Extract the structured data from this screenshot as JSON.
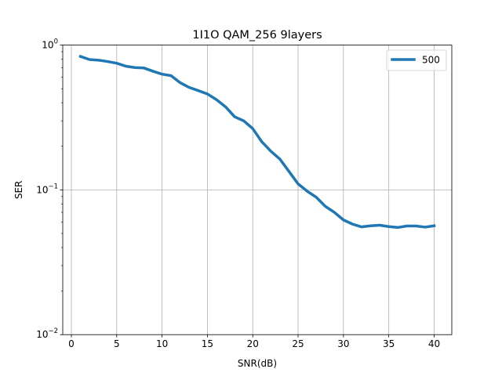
{
  "chart_data": {
    "type": "line",
    "title": "1I1O QAM_256 9layers",
    "xlabel": "SNR(dB)",
    "ylabel": "SER",
    "yscale": "log",
    "xlim": [
      -0.95,
      41.95
    ],
    "ylim": [
      0.01,
      1
    ],
    "xticks": [
      0,
      5,
      10,
      15,
      20,
      25,
      30,
      35,
      40
    ],
    "xtick_labels": [
      "0",
      "5",
      "10",
      "15",
      "20",
      "25",
      "30",
      "35",
      "40"
    ],
    "yticks": [
      {
        "value": 0.01,
        "base": "10",
        "exp": "−2"
      },
      {
        "value": 0.1,
        "base": "10",
        "exp": "−1"
      },
      {
        "value": 1,
        "base": "10",
        "exp": "0"
      }
    ],
    "grid": true,
    "legend_position": "top-right",
    "series": [
      {
        "name": "500",
        "color": "#1f77b4",
        "x": [
          1,
          2,
          3,
          4,
          5,
          6,
          7,
          8,
          9,
          10,
          11,
          12,
          13,
          14,
          15,
          16,
          17,
          18,
          19,
          20,
          21,
          22,
          23,
          24,
          25,
          26,
          27,
          28,
          29,
          30,
          31,
          32,
          33,
          34,
          35,
          36,
          37,
          38,
          39,
          40
        ],
        "values": [
          0.835,
          0.795,
          0.787,
          0.77,
          0.75,
          0.715,
          0.7,
          0.695,
          0.66,
          0.63,
          0.615,
          0.55,
          0.51,
          0.485,
          0.46,
          0.42,
          0.375,
          0.32,
          0.3,
          0.265,
          0.215,
          0.185,
          0.163,
          0.134,
          0.11,
          0.098,
          0.089,
          0.077,
          0.07,
          0.062,
          0.058,
          0.0555,
          0.0565,
          0.057,
          0.0558,
          0.055,
          0.0563,
          0.0563,
          0.0553,
          0.0565
        ]
      }
    ]
  }
}
